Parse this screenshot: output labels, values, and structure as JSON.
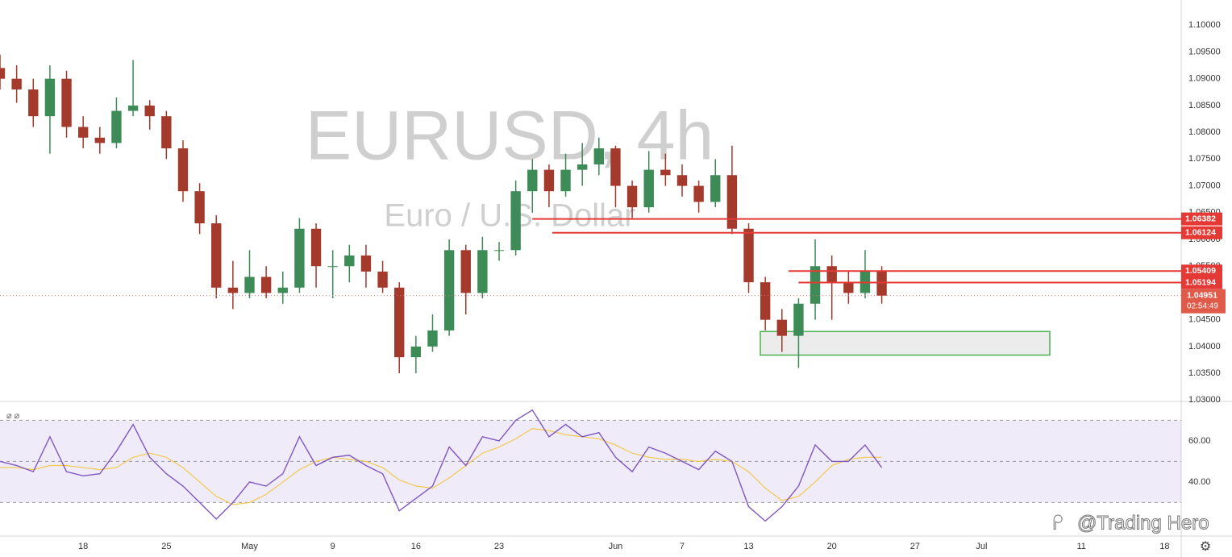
{
  "chart_data": [
    {
      "type": "candlestick",
      "title": "EURUSD, 4h",
      "subtitle": "Euro / U.S. Dollar",
      "x": [
        0,
        1,
        2,
        3,
        4,
        5,
        6,
        7,
        8,
        9,
        10,
        11,
        12,
        13,
        14,
        15,
        16,
        17,
        18,
        19,
        20,
        21,
        22,
        23,
        24,
        25,
        26,
        27,
        28,
        29,
        30,
        31,
        32,
        33,
        34,
        35,
        36,
        37,
        38,
        39,
        40,
        41,
        42,
        43,
        44,
        45,
        46,
        47,
        48,
        49,
        50,
        51,
        52,
        53
      ],
      "open": [
        1.092,
        1.09,
        1.088,
        1.083,
        1.09,
        1.081,
        1.079,
        1.078,
        1.084,
        1.085,
        1.083,
        1.077,
        1.069,
        1.063,
        1.051,
        1.05,
        1.053,
        1.05,
        1.051,
        1.062,
        1.055,
        1.055,
        1.057,
        1.054,
        1.051,
        1.038,
        1.04,
        1.043,
        1.058,
        1.05,
        1.058,
        1.058,
        1.069,
        1.073,
        1.069,
        1.073,
        1.074,
        1.077,
        1.07,
        1.066,
        1.073,
        1.072,
        1.07,
        1.067,
        1.072,
        1.062,
        1.052,
        1.045,
        1.042,
        1.048,
        1.055,
        1.052,
        1.05,
        1.054
      ],
      "high": [
        1.0945,
        1.0925,
        1.09,
        1.0925,
        1.0915,
        1.083,
        1.081,
        1.0865,
        1.0935,
        1.086,
        1.084,
        1.0785,
        1.0705,
        1.0645,
        1.056,
        1.058,
        1.055,
        1.054,
        1.064,
        1.063,
        1.058,
        1.059,
        1.059,
        1.056,
        1.052,
        1.042,
        1.046,
        1.06,
        1.059,
        1.0605,
        1.0595,
        1.071,
        1.075,
        1.074,
        1.076,
        1.078,
        1.079,
        1.0775,
        1.071,
        1.0765,
        1.076,
        1.074,
        1.071,
        1.075,
        1.0775,
        1.063,
        1.053,
        1.047,
        1.049,
        1.06,
        1.057,
        1.054,
        1.058,
        1.055
      ],
      "low": [
        1.088,
        1.0855,
        1.081,
        1.076,
        1.079,
        1.077,
        1.076,
        1.077,
        1.083,
        1.0805,
        1.075,
        1.067,
        1.061,
        1.049,
        1.047,
        1.049,
        1.049,
        1.048,
        1.05,
        1.051,
        1.049,
        1.052,
        1.051,
        1.05,
        1.035,
        1.035,
        1.039,
        1.042,
        1.046,
        1.049,
        1.056,
        1.057,
        1.065,
        1.066,
        1.068,
        1.07,
        1.072,
        1.066,
        1.064,
        1.065,
        1.07,
        1.068,
        1.065,
        1.066,
        1.061,
        1.05,
        1.043,
        1.039,
        1.036,
        1.045,
        1.045,
        1.048,
        1.049,
        1.048
      ],
      "close": [
        1.09,
        1.088,
        1.083,
        1.09,
        1.081,
        1.079,
        1.078,
        1.084,
        1.085,
        1.083,
        1.077,
        1.069,
        1.063,
        1.051,
        1.05,
        1.053,
        1.05,
        1.051,
        1.062,
        1.055,
        1.055,
        1.057,
        1.054,
        1.051,
        1.038,
        1.04,
        1.043,
        1.058,
        1.05,
        1.058,
        1.058,
        1.069,
        1.073,
        1.069,
        1.073,
        1.074,
        1.077,
        1.07,
        1.066,
        1.073,
        1.072,
        1.07,
        1.067,
        1.072,
        1.062,
        1.052,
        1.045,
        1.042,
        1.048,
        1.055,
        1.052,
        1.05,
        1.054,
        1.0495
      ],
      "up_color": "#3d8b57",
      "down_color": "#a33a2c",
      "xlim": [
        0,
        71
      ],
      "ylim": [
        1.0299,
        1.1047
      ],
      "yticks": [
        {
          "value": 1.03,
          "label": "1.03000"
        },
        {
          "value": 1.035,
          "label": "1.03500"
        },
        {
          "value": 1.04,
          "label": "1.04000"
        },
        {
          "value": 1.045,
          "label": "1.04500"
        },
        {
          "value": 1.05,
          "label": "1.05000"
        },
        {
          "value": 1.055,
          "label": "1.05500"
        },
        {
          "value": 1.06,
          "label": "1.06000"
        },
        {
          "value": 1.065,
          "label": "1.06500"
        },
        {
          "value": 1.07,
          "label": "1.07000"
        },
        {
          "value": 1.075,
          "label": "1.07500"
        },
        {
          "value": 1.08,
          "label": "1.08000"
        },
        {
          "value": 1.085,
          "label": "1.08500"
        },
        {
          "value": 1.09,
          "label": "1.09000"
        },
        {
          "value": 1.095,
          "label": "1.09500"
        },
        {
          "value": 1.1,
          "label": "1.10000"
        }
      ],
      "levels": [
        {
          "value": 1.06382,
          "start": 32
        },
        {
          "value": 1.06124,
          "start": 33.2
        },
        {
          "value": 1.05409,
          "start": 47.4
        },
        {
          "value": 1.05194,
          "start": 48
        }
      ],
      "level_color": "#e53935",
      "last_price": 1.04951,
      "countdown": "02:54:49",
      "zone": {
        "x": [
          45.7,
          63.1
        ],
        "y": [
          1.0384,
          1.0428
        ]
      },
      "zone_color": "#4caf50"
    },
    {
      "type": "line",
      "x": [
        0,
        1,
        2,
        3,
        4,
        5,
        6,
        7,
        8,
        9,
        10,
        11,
        12,
        13,
        14,
        15,
        16,
        17,
        18,
        19,
        20,
        21,
        22,
        23,
        24,
        25,
        26,
        27,
        28,
        29,
        30,
        31,
        32,
        33,
        34,
        35,
        36,
        37,
        38,
        39,
        40,
        41,
        42,
        43,
        44,
        45,
        46,
        47,
        48,
        49,
        50,
        51,
        52,
        53
      ],
      "series": [
        {
          "color": "#7e57c2",
          "values": [
            50,
            48,
            45,
            62,
            45,
            43,
            44,
            55,
            68,
            52,
            44,
            38,
            30,
            22,
            30,
            40,
            38,
            44,
            62,
            48,
            52,
            53,
            48,
            44,
            26,
            32,
            38,
            57,
            48,
            62,
            60,
            70,
            75,
            62,
            68,
            62,
            64,
            52,
            45,
            57,
            54,
            50,
            46,
            55,
            50,
            28,
            21,
            28,
            38,
            58,
            50,
            50,
            58,
            47
          ]
        },
        {
          "color": "#f2c94c",
          "values": [
            47,
            47,
            46,
            48,
            48,
            47,
            46,
            47,
            52,
            54,
            52,
            47,
            40,
            33,
            29,
            30,
            34,
            40,
            46,
            50,
            52,
            51,
            50,
            47,
            41,
            38,
            37,
            42,
            48,
            54,
            57,
            61,
            66,
            65,
            63,
            62,
            61,
            58,
            54,
            52,
            51,
            51,
            50,
            51,
            50,
            45,
            37,
            31,
            33,
            40,
            48,
            51,
            52,
            52
          ]
        }
      ],
      "xlim": [
        0,
        71
      ],
      "ylim": [
        13.7,
        78.4
      ],
      "yticks": [
        {
          "value": 40,
          "label": "40.00"
        },
        {
          "value": 60,
          "label": "60.00"
        }
      ],
      "levels": [
        30,
        50,
        70
      ],
      "xticks": [
        {
          "value": 5,
          "label": "18"
        },
        {
          "value": 10,
          "label": "25"
        },
        {
          "value": 15,
          "label": "May"
        },
        {
          "value": 20,
          "label": "9"
        },
        {
          "value": 25,
          "label": "16"
        },
        {
          "value": 30,
          "label": "23"
        },
        {
          "value": 37,
          "label": "Jun"
        },
        {
          "value": 41,
          "label": "7"
        },
        {
          "value": 45,
          "label": "13"
        },
        {
          "value": 50,
          "label": "20"
        },
        {
          "value": 55,
          "label": "27"
        },
        {
          "value": 59,
          "label": "Jul"
        },
        {
          "value": 65,
          "label": "11"
        },
        {
          "value": 70,
          "label": "18"
        }
      ]
    }
  ],
  "watermark": "@Trading Hero"
}
